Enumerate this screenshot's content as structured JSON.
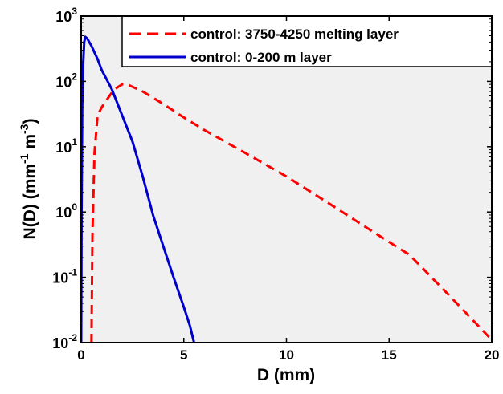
{
  "chart_data": {
    "type": "line",
    "xlabel": "D  (mm)",
    "ylabel": {
      "main": "N(D)   (mm",
      "exp1": "-1",
      "mid": " m",
      "exp2": "-3",
      "end": ")"
    },
    "xlim": [
      0,
      20
    ],
    "ylim": [
      0.01,
      1000
    ],
    "yscale": "log",
    "xticks": [
      {
        "value": 0,
        "label": "0"
      },
      {
        "value": 5,
        "label": "5"
      },
      {
        "value": 10,
        "label": "10"
      },
      {
        "value": 15,
        "label": "15"
      },
      {
        "value": 20,
        "label": "20"
      }
    ],
    "yticks": [
      {
        "value": 0.01,
        "base": "10",
        "exp": "-2"
      },
      {
        "value": 0.1,
        "base": "10",
        "exp": "-1"
      },
      {
        "value": 1,
        "base": "10",
        "exp": "0"
      },
      {
        "value": 10,
        "base": "10",
        "exp": "1"
      },
      {
        "value": 100,
        "base": "10",
        "exp": "2"
      },
      {
        "value": 1000,
        "base": "10",
        "exp": "3"
      }
    ],
    "grid": false,
    "legend_position": "top-right",
    "colors": {
      "background": "#f0f0f0",
      "axis": "#000000"
    },
    "series": [
      {
        "name": "control: 3750-4250 melting layer",
        "color": "#ff0000",
        "style": "dashed",
        "x": [
          0.5,
          0.55,
          0.65,
          0.8,
          1.0,
          1.3,
          1.6,
          2.0,
          2.3,
          3.0,
          4.0,
          5.0,
          6.0,
          8.0,
          10.0,
          12.0,
          14.0,
          16.0,
          18.0,
          20.0
        ],
        "y": [
          0.01,
          0.5,
          8,
          30,
          40,
          55,
          75,
          90,
          88,
          70,
          45,
          28,
          18,
          8,
          3.5,
          1.4,
          0.55,
          0.22,
          0.05,
          0.011
        ]
      },
      {
        "name": "control: 0-200 m layer",
        "color": "#0000cc",
        "style": "solid",
        "x": [
          0.0,
          0.02,
          0.05,
          0.1,
          0.15,
          0.2,
          0.3,
          0.5,
          0.8,
          1.0,
          1.5,
          2.0,
          2.5,
          3.0,
          3.5,
          4.0,
          4.5,
          5.0,
          5.3,
          5.5
        ],
        "y": [
          0.01,
          1,
          40,
          200,
          400,
          480,
          450,
          350,
          220,
          150,
          75,
          30,
          12,
          3.5,
          0.9,
          0.3,
          0.1,
          0.035,
          0.018,
          0.01
        ]
      }
    ]
  }
}
